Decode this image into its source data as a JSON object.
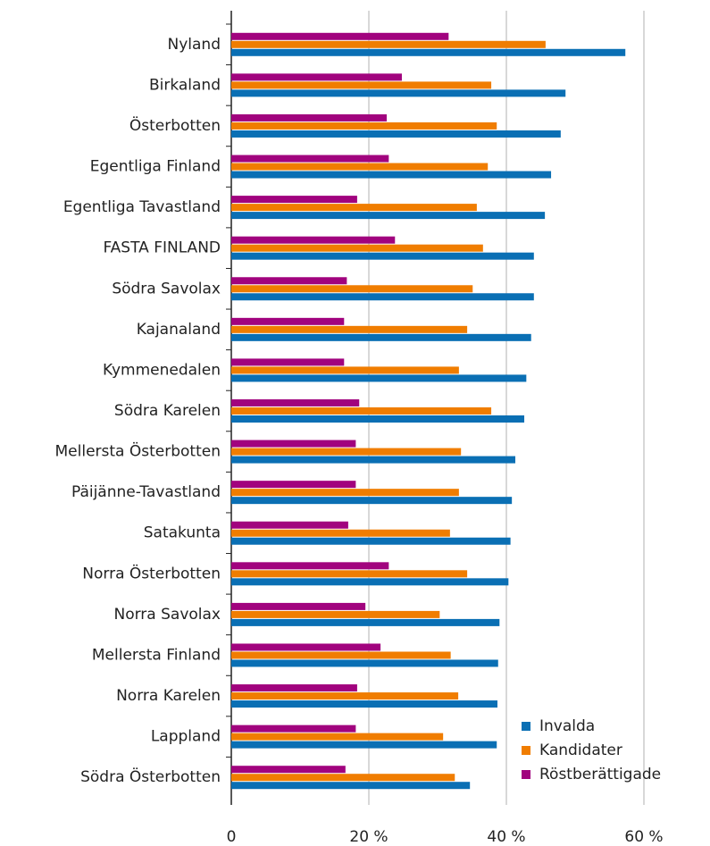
{
  "chart_data": {
    "type": "barh",
    "categories": [
      "Nyland",
      "Birkaland",
      "Österbotten",
      "Egentliga Finland",
      "Egentliga Tavastland",
      "FASTA FINLAND",
      "Södra Savolax",
      "Kajanaland",
      "Kymmenedalen",
      "Södra Karelen",
      "Mellersta Österbotten",
      "Päijänne-Tavastland",
      "Satakunta",
      "Norra Österbotten",
      "Norra Savolax",
      "Mellersta Finland",
      "Norra Karelen",
      "Lappland",
      "Södra Österbotten"
    ],
    "series": [
      {
        "name": "Invalda",
        "color": "#0a6fb4",
        "values": [
          57.3,
          48.6,
          47.9,
          46.5,
          45.6,
          44.0,
          44.0,
          43.6,
          42.9,
          42.6,
          41.3,
          40.8,
          40.6,
          40.3,
          39.0,
          38.8,
          38.7,
          38.6,
          34.7
        ]
      },
      {
        "name": "Kandidater",
        "color": "#f07d00",
        "values": [
          45.7,
          37.8,
          38.6,
          37.3,
          35.7,
          36.6,
          35.1,
          34.3,
          33.1,
          37.8,
          33.4,
          33.1,
          31.8,
          34.3,
          30.3,
          31.9,
          33.0,
          30.8,
          32.5
        ]
      },
      {
        "name": "Röstberättigade",
        "color": "#a1037e",
        "values": [
          31.6,
          24.8,
          22.6,
          22.9,
          18.3,
          23.8,
          16.8,
          16.4,
          16.4,
          18.6,
          18.1,
          18.1,
          17.0,
          22.9,
          19.5,
          21.7,
          18.3,
          18.1,
          16.6
        ]
      }
    ],
    "xlim": [
      0,
      70
    ],
    "xticks": [
      0,
      {
        "value": 20,
        "label": "20 %"
      },
      {
        "value": 40,
        "label": "40 %"
      },
      {
        "value": 60,
        "label": "60 %"
      }
    ],
    "grid": true,
    "legend": "lower right"
  }
}
